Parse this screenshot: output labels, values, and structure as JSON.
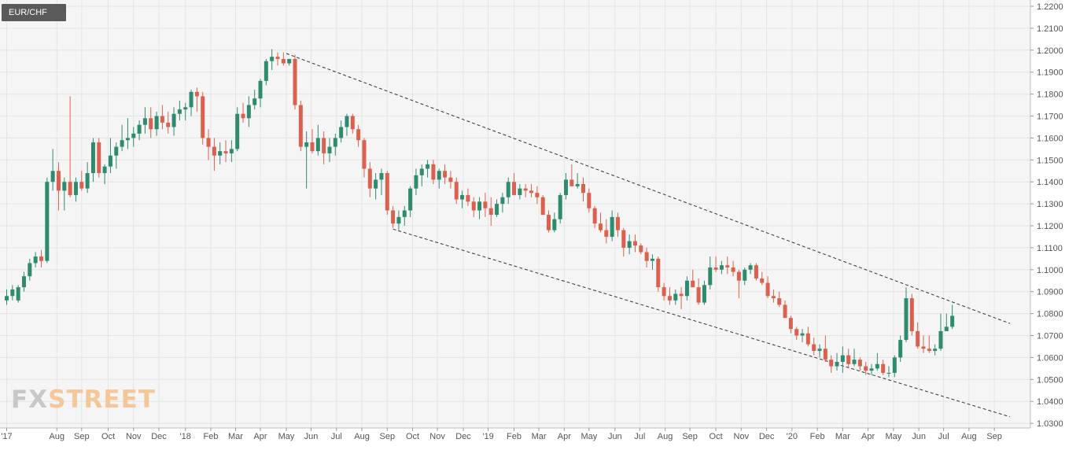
{
  "symbol": "EUR/CHF",
  "logo": {
    "part1": "FX",
    "part2": "STREET"
  },
  "colors": {
    "up": "#2e8b6e",
    "down": "#d9614e",
    "background": "#f5f5f5",
    "grid": "#e4e4e4",
    "trendline": "#333333"
  },
  "chart_data": {
    "type": "candlestick",
    "timeframe": "weekly",
    "grid": true,
    "y_axis": {
      "position": "right",
      "ylim": [
        1.0275,
        1.221
      ],
      "ticks": [
        "1.2200",
        "1.2100",
        "1.2000",
        "1.1900",
        "1.1800",
        "1.1700",
        "1.1600",
        "1.1500",
        "1.1400",
        "1.1300",
        "1.1200",
        "1.1100",
        "1.1000",
        "1.0900",
        "1.0800",
        "1.0700",
        "1.0600",
        "1.0500",
        "1.0400",
        "1.0300"
      ]
    },
    "x_axis": {
      "labels": [
        "'17",
        "Aug",
        "Sep",
        "Oct",
        "Nov",
        "Dec",
        "'18",
        "Feb",
        "Mar",
        "Apr",
        "May",
        "Jun",
        "Jul",
        "Aug",
        "Sep",
        "Oct",
        "Nov",
        "Dec",
        "'19",
        "Feb",
        "Mar",
        "Apr",
        "May",
        "Jun",
        "Jul",
        "Aug",
        "Sep",
        "Oct",
        "Nov",
        "Dec",
        "'20",
        "Feb",
        "Mar",
        "Apr",
        "May",
        "Jun",
        "Jul",
        "Aug",
        "Sep"
      ],
      "label_weeks": [
        0,
        8.7,
        13,
        17.6,
        22,
        26.4,
        31,
        35.4,
        39.7,
        44,
        48.5,
        52.8,
        57.2,
        61.6,
        66,
        70.4,
        74.7,
        79.2,
        83.5,
        88,
        92.3,
        96.7,
        101,
        105.5,
        109.8,
        114.2,
        118.5,
        123,
        127.4,
        131.8,
        136.2,
        140.6,
        145,
        149.4,
        153.8,
        158.2,
        162.5,
        166.9,
        171.3
      ]
    },
    "candles": [
      [
        1.086,
        1.091,
        1.084,
        1.088
      ],
      [
        1.088,
        1.093,
        1.086,
        1.091
      ],
      [
        1.086,
        1.093,
        1.085,
        1.092
      ],
      [
        1.092,
        1.099,
        1.09,
        1.097
      ],
      [
        1.097,
        1.105,
        1.095,
        1.103
      ],
      [
        1.103,
        1.108,
        1.101,
        1.106
      ],
      [
        1.106,
        1.109,
        1.101,
        1.104
      ],
      [
        1.104,
        1.142,
        1.103,
        1.14
      ],
      [
        1.14,
        1.155,
        1.136,
        1.145
      ],
      [
        1.145,
        1.149,
        1.127,
        1.136
      ],
      [
        1.136,
        1.142,
        1.127,
        1.14
      ],
      [
        1.14,
        1.179,
        1.133,
        1.134
      ],
      [
        1.134,
        1.142,
        1.131,
        1.14
      ],
      [
        1.14,
        1.145,
        1.136,
        1.137
      ],
      [
        1.137,
        1.149,
        1.135,
        1.144
      ],
      [
        1.144,
        1.16,
        1.14,
        1.158
      ],
      [
        1.158,
        1.16,
        1.142,
        1.144
      ],
      [
        1.144,
        1.148,
        1.139,
        1.147
      ],
      [
        1.147,
        1.16,
        1.144,
        1.152
      ],
      [
        1.152,
        1.158,
        1.146,
        1.156
      ],
      [
        1.156,
        1.166,
        1.154,
        1.159
      ],
      [
        1.159,
        1.169,
        1.155,
        1.16
      ],
      [
        1.16,
        1.165,
        1.156,
        1.162
      ],
      [
        1.162,
        1.168,
        1.159,
        1.166
      ],
      [
        1.166,
        1.174,
        1.162,
        1.169
      ],
      [
        1.169,
        1.174,
        1.16,
        1.164
      ],
      [
        1.164,
        1.172,
        1.161,
        1.17
      ],
      [
        1.17,
        1.175,
        1.164,
        1.167
      ],
      [
        1.167,
        1.172,
        1.162,
        1.165
      ],
      [
        1.165,
        1.174,
        1.161,
        1.171
      ],
      [
        1.171,
        1.177,
        1.168,
        1.173
      ],
      [
        1.173,
        1.176,
        1.168,
        1.174
      ],
      [
        1.174,
        1.182,
        1.17,
        1.181
      ],
      [
        1.181,
        1.183,
        1.172,
        1.179
      ],
      [
        1.179,
        1.181,
        1.157,
        1.16
      ],
      [
        1.16,
        1.164,
        1.15,
        1.156
      ],
      [
        1.156,
        1.16,
        1.145,
        1.152
      ],
      [
        1.152,
        1.158,
        1.148,
        1.154
      ],
      [
        1.154,
        1.159,
        1.149,
        1.153
      ],
      [
        1.153,
        1.159,
        1.149,
        1.155
      ],
      [
        1.155,
        1.174,
        1.154,
        1.171
      ],
      [
        1.171,
        1.176,
        1.167,
        1.169
      ],
      [
        1.169,
        1.179,
        1.165,
        1.175
      ],
      [
        1.175,
        1.182,
        1.173,
        1.178
      ],
      [
        1.178,
        1.187,
        1.174,
        1.186
      ],
      [
        1.186,
        1.196,
        1.184,
        1.195
      ],
      [
        1.195,
        1.2005,
        1.191,
        1.197
      ],
      [
        1.197,
        1.199,
        1.193,
        1.196
      ],
      [
        1.196,
        1.199,
        1.193,
        1.194
      ],
      [
        1.194,
        1.196,
        1.193,
        1.196
      ],
      [
        1.196,
        1.198,
        1.173,
        1.175
      ],
      [
        1.175,
        1.177,
        1.154,
        1.156
      ],
      [
        1.156,
        1.163,
        1.137,
        1.158
      ],
      [
        1.158,
        1.164,
        1.153,
        1.154
      ],
      [
        1.154,
        1.166,
        1.152,
        1.16
      ],
      [
        1.16,
        1.163,
        1.148,
        1.153
      ],
      [
        1.153,
        1.16,
        1.149,
        1.156
      ],
      [
        1.156,
        1.162,
        1.152,
        1.16
      ],
      [
        1.16,
        1.168,
        1.158,
        1.165
      ],
      [
        1.165,
        1.171,
        1.161,
        1.17
      ],
      [
        1.17,
        1.171,
        1.162,
        1.164
      ],
      [
        1.164,
        1.166,
        1.156,
        1.159
      ],
      [
        1.159,
        1.16,
        1.142,
        1.146
      ],
      [
        1.146,
        1.149,
        1.133,
        1.137
      ],
      [
        1.137,
        1.144,
        1.132,
        1.141
      ],
      [
        1.141,
        1.146,
        1.134,
        1.144
      ],
      [
        1.144,
        1.145,
        1.125,
        1.127
      ],
      [
        1.127,
        1.129,
        1.119,
        1.121
      ],
      [
        1.121,
        1.127,
        1.118,
        1.124
      ],
      [
        1.124,
        1.129,
        1.12,
        1.127
      ],
      [
        1.127,
        1.138,
        1.124,
        1.137
      ],
      [
        1.137,
        1.146,
        1.134,
        1.143
      ],
      [
        1.143,
        1.148,
        1.138,
        1.146
      ],
      [
        1.146,
        1.15,
        1.142,
        1.148
      ],
      [
        1.148,
        1.15,
        1.139,
        1.141
      ],
      [
        1.141,
        1.146,
        1.137,
        1.145
      ],
      [
        1.145,
        1.148,
        1.139,
        1.142
      ],
      [
        1.142,
        1.145,
        1.137,
        1.14
      ],
      [
        1.14,
        1.142,
        1.13,
        1.132
      ],
      [
        1.132,
        1.136,
        1.128,
        1.134
      ],
      [
        1.134,
        1.137,
        1.129,
        1.131
      ],
      [
        1.131,
        1.133,
        1.124,
        1.127
      ],
      [
        1.127,
        1.133,
        1.123,
        1.131
      ],
      [
        1.131,
        1.135,
        1.124,
        1.128
      ],
      [
        1.128,
        1.133,
        1.12,
        1.125
      ],
      [
        1.125,
        1.132,
        1.124,
        1.13
      ],
      [
        1.13,
        1.135,
        1.126,
        1.133
      ],
      [
        1.133,
        1.142,
        1.13,
        1.14
      ],
      [
        1.14,
        1.144,
        1.135,
        1.134
      ],
      [
        1.134,
        1.139,
        1.132,
        1.137
      ],
      [
        1.137,
        1.139,
        1.133,
        1.136
      ],
      [
        1.136,
        1.139,
        1.133,
        1.135
      ],
      [
        1.135,
        1.138,
        1.13,
        1.133
      ],
      [
        1.133,
        1.134,
        1.125,
        1.125
      ],
      [
        1.125,
        1.127,
        1.117,
        1.118
      ],
      [
        1.118,
        1.126,
        1.117,
        1.123
      ],
      [
        1.123,
        1.135,
        1.121,
        1.134
      ],
      [
        1.134,
        1.144,
        1.132,
        1.141
      ],
      [
        1.141,
        1.148,
        1.138,
        1.138
      ],
      [
        1.138,
        1.144,
        1.137,
        1.139
      ],
      [
        1.139,
        1.142,
        1.131,
        1.135
      ],
      [
        1.135,
        1.137,
        1.126,
        1.128
      ],
      [
        1.128,
        1.129,
        1.119,
        1.121
      ],
      [
        1.121,
        1.126,
        1.117,
        1.118
      ],
      [
        1.118,
        1.123,
        1.112,
        1.115
      ],
      [
        1.115,
        1.127,
        1.113,
        1.124
      ],
      [
        1.124,
        1.126,
        1.115,
        1.118
      ],
      [
        1.118,
        1.119,
        1.106,
        1.11
      ],
      [
        1.11,
        1.116,
        1.107,
        1.113
      ],
      [
        1.113,
        1.116,
        1.108,
        1.111
      ],
      [
        1.111,
        1.112,
        1.107,
        1.108
      ],
      [
        1.108,
        1.11,
        1.101,
        1.104
      ],
      [
        1.104,
        1.107,
        1.1,
        1.105
      ],
      [
        1.105,
        1.106,
        1.09,
        1.092
      ],
      [
        1.092,
        1.094,
        1.086,
        1.088
      ],
      [
        1.088,
        1.092,
        1.084,
        1.086
      ],
      [
        1.086,
        1.091,
        1.084,
        1.089
      ],
      [
        1.089,
        1.092,
        1.082,
        1.088
      ],
      [
        1.088,
        1.097,
        1.086,
        1.095
      ],
      [
        1.095,
        1.1,
        1.092,
        1.092
      ],
      [
        1.092,
        1.096,
        1.084,
        1.085
      ],
      [
        1.085,
        1.095,
        1.084,
        1.093
      ],
      [
        1.093,
        1.106,
        1.091,
        1.101
      ],
      [
        1.101,
        1.106,
        1.099,
        1.1
      ],
      [
        1.1,
        1.104,
        1.098,
        1.102
      ],
      [
        1.102,
        1.106,
        1.098,
        1.101
      ],
      [
        1.101,
        1.104,
        1.097,
        1.099
      ],
      [
        1.099,
        1.1,
        1.087,
        1.095
      ],
      [
        1.095,
        1.101,
        1.093,
        1.1
      ],
      [
        1.1,
        1.103,
        1.098,
        1.102
      ],
      [
        1.102,
        1.103,
        1.095,
        1.096
      ],
      [
        1.096,
        1.099,
        1.093,
        1.094
      ],
      [
        1.094,
        1.097,
        1.087,
        1.088
      ],
      [
        1.088,
        1.091,
        1.085,
        1.087
      ],
      [
        1.087,
        1.09,
        1.083,
        1.084
      ],
      [
        1.084,
        1.086,
        1.078,
        1.078
      ],
      [
        1.078,
        1.079,
        1.071,
        1.073
      ],
      [
        1.073,
        1.074,
        1.068,
        1.07
      ],
      [
        1.07,
        1.073,
        1.067,
        1.071
      ],
      [
        1.071,
        1.074,
        1.065,
        1.066
      ],
      [
        1.066,
        1.069,
        1.061,
        1.063
      ],
      [
        1.063,
        1.066,
        1.06,
        1.064
      ],
      [
        1.064,
        1.07,
        1.058,
        1.059
      ],
      [
        1.059,
        1.061,
        1.053,
        1.056
      ],
      [
        1.056,
        1.062,
        1.054,
        1.058
      ],
      [
        1.058,
        1.065,
        1.053,
        1.061
      ],
      [
        1.061,
        1.064,
        1.055,
        1.057
      ],
      [
        1.057,
        1.064,
        1.056,
        1.059
      ],
      [
        1.059,
        1.06,
        1.054,
        1.056
      ],
      [
        1.056,
        1.058,
        1.052,
        1.054
      ],
      [
        1.054,
        1.057,
        1.052,
        1.055
      ],
      [
        1.055,
        1.062,
        1.054,
        1.057
      ],
      [
        1.057,
        1.059,
        1.052,
        1.053
      ],
      [
        1.053,
        1.056,
        1.051,
        1.053
      ],
      [
        1.053,
        1.061,
        1.051,
        1.06
      ],
      [
        1.06,
        1.07,
        1.058,
        1.068
      ],
      [
        1.068,
        1.092,
        1.067,
        1.087
      ],
      [
        1.087,
        1.089,
        1.07,
        1.072
      ],
      [
        1.072,
        1.076,
        1.064,
        1.065
      ],
      [
        1.065,
        1.07,
        1.062,
        1.064
      ],
      [
        1.064,
        1.07,
        1.062,
        1.063
      ],
      [
        1.063,
        1.066,
        1.061,
        1.064
      ],
      [
        1.064,
        1.08,
        1.063,
        1.072
      ],
      [
        1.072,
        1.08,
        1.072,
        1.074
      ],
      [
        1.074,
        1.084,
        1.073,
        1.079
      ]
    ],
    "trendlines": [
      {
        "name": "upper",
        "style": "dashed",
        "from": [
          48.5,
          1.1985
        ],
        "to": [
          174,
          1.0755
        ]
      },
      {
        "name": "lower",
        "style": "dashed",
        "from": [
          67,
          1.1185
        ],
        "to": [
          174,
          1.033
        ]
      }
    ]
  }
}
